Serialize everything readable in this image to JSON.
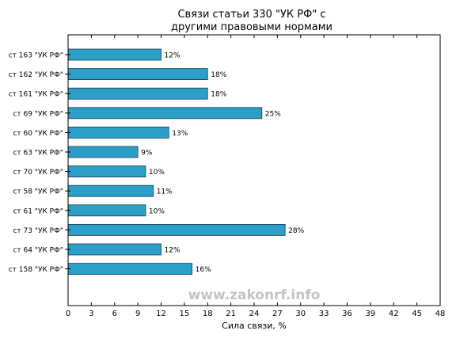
{
  "chart_data": {
    "type": "bar",
    "orientation": "horizontal",
    "title_lines": [
      "Связи статьи 330 \"УК РФ\" с",
      "другими правовыми нормами"
    ],
    "xlabel": "Сила связи, %",
    "ylabel": "",
    "xlim": [
      0,
      48
    ],
    "xticks": [
      0,
      3,
      6,
      9,
      12,
      15,
      18,
      21,
      24,
      27,
      30,
      33,
      36,
      39,
      42,
      45,
      48
    ],
    "grid": false,
    "categories": [
      "ст 163 \"УК РФ\"",
      "ст 162 \"УК РФ\"",
      "ст 161 \"УК РФ\"",
      "ст 69 \"УК РФ\"",
      "ст 60 \"УК РФ\"",
      "ст 63 \"УК РФ\"",
      "ст 70 \"УК РФ\"",
      "ст 58 \"УК РФ\"",
      "ст 61 \"УК РФ\"",
      "ст 73 \"УК РФ\"",
      "ст 64 \"УК РФ\"",
      "ст 158 \"УК РФ\""
    ],
    "values": [
      12,
      18,
      18,
      25,
      13,
      9,
      10,
      11,
      10,
      28,
      12,
      16
    ],
    "value_labels": [
      "12%",
      "18%",
      "18%",
      "25%",
      "13%",
      "9%",
      "10%",
      "11%",
      "10%",
      "28%",
      "12%",
      "16%"
    ],
    "bar_color": "#2b9fc8",
    "bar_edge_color": "#1a3a4a",
    "watermark": "www.zakonrf.info"
  }
}
